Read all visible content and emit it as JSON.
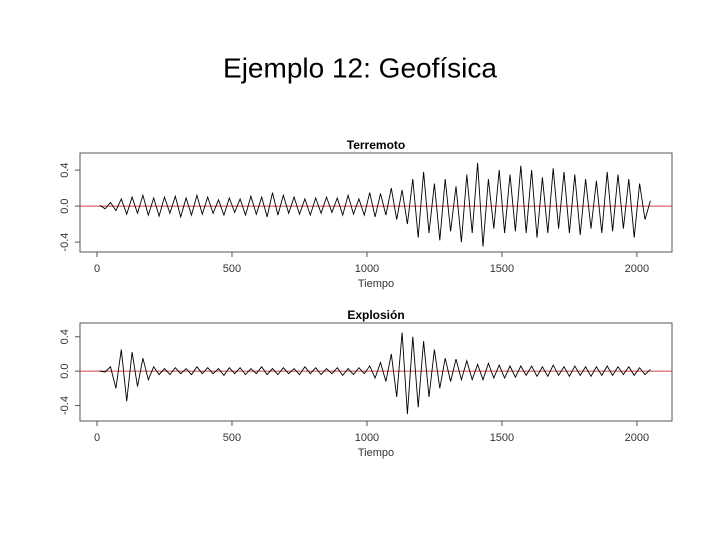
{
  "slide_title": "Ejemplo 12: Geofísica",
  "chart_data": [
    {
      "type": "line",
      "title": "Terremoto",
      "x_label": "Tiempo",
      "color": "#000000",
      "hline": {
        "value": 0,
        "color": "#d04040"
      },
      "xlim": [
        -63,
        2130
      ],
      "xticks": [
        0,
        500,
        1000,
        1500,
        2000
      ],
      "ylim": [
        -0.51,
        0.59
      ],
      "yticks": [
        -0.4,
        {
          "value": 0,
          "label": "0.0"
        },
        0.4
      ],
      "x": [
        10,
        30,
        50,
        70,
        90,
        110,
        130,
        150,
        170,
        190,
        210,
        230,
        250,
        270,
        290,
        310,
        330,
        350,
        370,
        390,
        410,
        430,
        450,
        470,
        490,
        510,
        530,
        550,
        570,
        590,
        610,
        630,
        650,
        670,
        690,
        710,
        730,
        750,
        770,
        790,
        810,
        830,
        850,
        870,
        890,
        910,
        930,
        950,
        970,
        990,
        1010,
        1030,
        1050,
        1070,
        1090,
        1110,
        1130,
        1150,
        1170,
        1190,
        1210,
        1230,
        1250,
        1270,
        1290,
        1310,
        1330,
        1350,
        1370,
        1390,
        1410,
        1430,
        1450,
        1470,
        1490,
        1510,
        1530,
        1550,
        1570,
        1590,
        1610,
        1630,
        1650,
        1670,
        1690,
        1710,
        1730,
        1750,
        1770,
        1790,
        1810,
        1830,
        1850,
        1870,
        1890,
        1910,
        1930,
        1950,
        1970,
        1990,
        2010,
        2030,
        2050
      ],
      "values": [
        0.01,
        -0.03,
        0.04,
        -0.05,
        0.08,
        -0.09,
        0.1,
        -0.08,
        0.12,
        -0.1,
        0.09,
        -0.11,
        0.1,
        -0.08,
        0.11,
        -0.12,
        0.09,
        -0.1,
        0.12,
        -0.09,
        0.1,
        -0.08,
        0.07,
        -0.1,
        0.09,
        -0.07,
        0.08,
        -0.1,
        0.11,
        -0.09,
        0.1,
        -0.12,
        0.15,
        -0.1,
        0.12,
        -0.08,
        0.1,
        -0.09,
        0.08,
        -0.1,
        0.09,
        -0.08,
        0.1,
        -0.07,
        0.09,
        -0.1,
        0.12,
        -0.09,
        0.08,
        -0.1,
        0.15,
        -0.12,
        0.14,
        -0.1,
        0.2,
        -0.15,
        0.18,
        -0.2,
        0.3,
        -0.35,
        0.38,
        -0.3,
        0.25,
        -0.38,
        0.3,
        -0.28,
        0.22,
        -0.4,
        0.35,
        -0.3,
        0.48,
        -0.45,
        0.3,
        -0.25,
        0.4,
        -0.3,
        0.35,
        -0.28,
        0.45,
        -0.3,
        0.4,
        -0.35,
        0.32,
        -0.3,
        0.42,
        -0.25,
        0.38,
        -0.3,
        0.35,
        -0.32,
        0.3,
        -0.25,
        0.28,
        -0.3,
        0.38,
        -0.28,
        0.35,
        -0.25,
        0.3,
        -0.35,
        0.25,
        -0.15,
        0.06
      ]
    },
    {
      "type": "line",
      "title": "Explosión",
      "x_label": "Tiempo",
      "color": "#000000",
      "hline": {
        "value": 0,
        "color": "#d04040"
      },
      "xlim": [
        -63,
        2130
      ],
      "xticks": [
        0,
        500,
        1000,
        1500,
        2000
      ],
      "ylim": [
        -0.58,
        0.56
      ],
      "yticks": [
        -0.4,
        {
          "value": 0,
          "label": "0.0"
        },
        0.4
      ],
      "x": [
        10,
        30,
        50,
        70,
        90,
        110,
        130,
        150,
        170,
        190,
        210,
        230,
        250,
        270,
        290,
        310,
        330,
        350,
        370,
        390,
        410,
        430,
        450,
        470,
        490,
        510,
        530,
        550,
        570,
        590,
        610,
        630,
        650,
        670,
        690,
        710,
        730,
        750,
        770,
        790,
        810,
        830,
        850,
        870,
        890,
        910,
        930,
        950,
        970,
        990,
        1010,
        1030,
        1050,
        1070,
        1090,
        1110,
        1130,
        1150,
        1170,
        1190,
        1210,
        1230,
        1250,
        1270,
        1290,
        1310,
        1330,
        1350,
        1370,
        1390,
        1410,
        1430,
        1450,
        1470,
        1490,
        1510,
        1530,
        1550,
        1570,
        1590,
        1610,
        1630,
        1650,
        1670,
        1690,
        1710,
        1730,
        1750,
        1770,
        1790,
        1810,
        1830,
        1850,
        1870,
        1890,
        1910,
        1930,
        1950,
        1970,
        1990,
        2010,
        2030,
        2050
      ],
      "values": [
        0.0,
        -0.01,
        0.05,
        -0.2,
        0.25,
        -0.35,
        0.22,
        -0.18,
        0.15,
        -0.1,
        0.05,
        -0.04,
        0.03,
        -0.04,
        0.04,
        -0.03,
        0.03,
        -0.04,
        0.05,
        -0.03,
        0.04,
        -0.03,
        0.03,
        -0.05,
        0.04,
        -0.03,
        0.04,
        -0.04,
        0.03,
        -0.03,
        0.05,
        -0.04,
        0.03,
        -0.04,
        0.04,
        -0.03,
        0.03,
        -0.04,
        0.05,
        -0.03,
        0.04,
        -0.04,
        0.03,
        -0.03,
        0.04,
        -0.05,
        0.03,
        -0.04,
        0.04,
        -0.03,
        0.06,
        -0.08,
        0.1,
        -0.12,
        0.2,
        -0.3,
        0.45,
        -0.5,
        0.4,
        -0.42,
        0.35,
        -0.3,
        0.25,
        -0.2,
        0.15,
        -0.12,
        0.14,
        -0.1,
        0.12,
        -0.1,
        0.08,
        -0.1,
        0.09,
        -0.08,
        0.07,
        -0.08,
        0.06,
        -0.07,
        0.06,
        -0.05,
        0.06,
        -0.06,
        0.05,
        -0.06,
        0.07,
        -0.05,
        0.05,
        -0.06,
        0.06,
        -0.05,
        0.05,
        -0.06,
        0.05,
        -0.05,
        0.06,
        -0.05,
        0.05,
        -0.04,
        0.05,
        -0.05,
        0.04,
        -0.04,
        0.02
      ]
    }
  ]
}
